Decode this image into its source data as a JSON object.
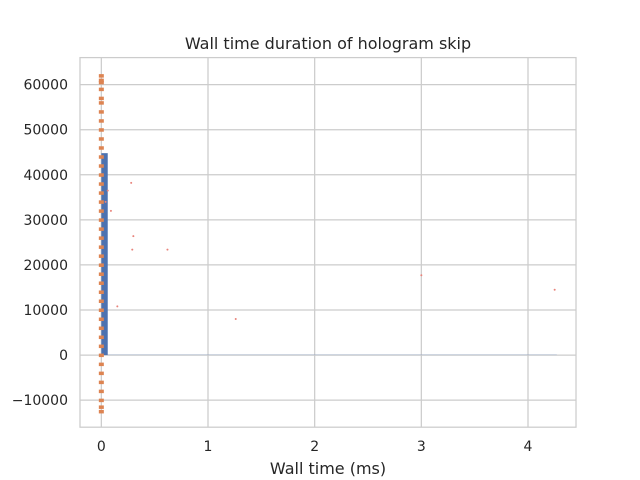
{
  "chart_data": {
    "type": "scatter",
    "title": "Wall time duration of hologram skip",
    "xlabel": "Wall time (ms)",
    "ylabel": "",
    "xlim": [
      -0.2,
      4.45
    ],
    "ylim": [
      -16000,
      66000
    ],
    "x_ticks": [
      0,
      1,
      2,
      3,
      4
    ],
    "x_tick_labels": [
      "0",
      "1",
      "2",
      "3",
      "4"
    ],
    "y_ticks": [
      -10000,
      0,
      10000,
      20000,
      30000,
      40000,
      50000,
      60000
    ],
    "y_tick_labels": [
      "−10000",
      "0",
      "10000",
      "20000",
      "30000",
      "40000",
      "50000",
      "60000"
    ],
    "grid": true,
    "colors": {
      "histogram": "#4c72b0",
      "points": "#dd8452",
      "outliers": "#e8837b",
      "grid": "#cccccc",
      "spine": "#cccccc"
    },
    "histogram": {
      "bins": [
        {
          "x0": 0.0,
          "x1": 0.06,
          "count": 44800
        },
        {
          "x0": 0.06,
          "x1": 4.27,
          "count": 0
        }
      ]
    },
    "dense_points": [
      {
        "x": 0.0,
        "y": 62000
      },
      {
        "x": 0.0,
        "y": 61000
      },
      {
        "x": 0.0,
        "y": 60500
      },
      {
        "x": 0.0,
        "y": 59000
      },
      {
        "x": 0.0,
        "y": 57000
      },
      {
        "x": 0.0,
        "y": 56000
      },
      {
        "x": 0.0,
        "y": 54000
      },
      {
        "x": 0.0,
        "y": 52000
      },
      {
        "x": 0.0,
        "y": 50000
      },
      {
        "x": 0.0,
        "y": 48000
      },
      {
        "x": 0.0,
        "y": 46000
      },
      {
        "x": 0.0,
        "y": 44000
      },
      {
        "x": 0.0,
        "y": 42000
      },
      {
        "x": 0.0,
        "y": 40000
      },
      {
        "x": 0.0,
        "y": 38000
      },
      {
        "x": 0.0,
        "y": 36000
      },
      {
        "x": 0.0,
        "y": 34000
      },
      {
        "x": 0.0,
        "y": 32000
      },
      {
        "x": 0.0,
        "y": 30000
      },
      {
        "x": 0.0,
        "y": 28000
      },
      {
        "x": 0.0,
        "y": 26000
      },
      {
        "x": 0.0,
        "y": 24000
      },
      {
        "x": 0.0,
        "y": 22000
      },
      {
        "x": 0.0,
        "y": 20000
      },
      {
        "x": 0.0,
        "y": 18000
      },
      {
        "x": 0.0,
        "y": 16000
      },
      {
        "x": 0.0,
        "y": 14000
      },
      {
        "x": 0.0,
        "y": 12000
      },
      {
        "x": 0.0,
        "y": 10000
      },
      {
        "x": 0.0,
        "y": 8000
      },
      {
        "x": 0.0,
        "y": 6000
      },
      {
        "x": 0.0,
        "y": 4000
      },
      {
        "x": 0.0,
        "y": 2000
      },
      {
        "x": 0.0,
        "y": 0
      },
      {
        "x": 0.0,
        "y": -2000
      },
      {
        "x": 0.0,
        "y": -4000
      },
      {
        "x": 0.0,
        "y": -6000
      },
      {
        "x": 0.0,
        "y": -8000
      },
      {
        "x": 0.0,
        "y": -10000
      },
      {
        "x": 0.0,
        "y": -11500
      },
      {
        "x": 0.0,
        "y": -12500
      }
    ],
    "outlier_points": [
      {
        "x": 0.04,
        "y": 34000
      },
      {
        "x": 0.06,
        "y": 36500
      },
      {
        "x": 0.09,
        "y": 32000
      },
      {
        "x": 0.15,
        "y": 10800
      },
      {
        "x": 0.28,
        "y": 38200
      },
      {
        "x": 0.29,
        "y": 23400
      },
      {
        "x": 0.3,
        "y": 26400
      },
      {
        "x": 0.62,
        "y": 23400
      },
      {
        "x": 1.26,
        "y": 8000
      },
      {
        "x": 3.0,
        "y": 17700
      },
      {
        "x": 4.25,
        "y": 14500
      }
    ]
  }
}
